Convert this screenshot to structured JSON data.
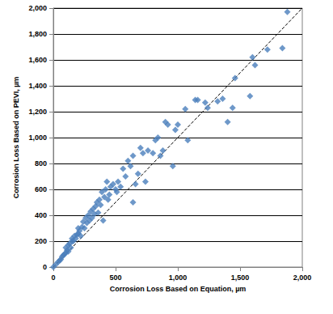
{
  "chart_data": {
    "type": "scatter",
    "x_label": "Corrosion Loss Based on Equation, µm",
    "y_label": "Corrosion Loss Based on PEVI, µm",
    "xlim": [
      0,
      2000
    ],
    "xticks": [
      0,
      500,
      1000,
      1500,
      2000
    ],
    "ylim": [
      0,
      2000
    ],
    "yticks": [
      0,
      200,
      400,
      600,
      800,
      1000,
      1200,
      1400,
      1600,
      1800,
      2000
    ],
    "grid": true,
    "series": [
      {
        "type": "scatter",
        "marker": "diamond",
        "color": "#4a7ebb",
        "x": [
          0,
          20,
          40,
          50,
          60,
          70,
          80,
          90,
          100,
          100,
          110,
          120,
          120,
          130,
          140,
          150,
          150,
          160,
          170,
          180,
          190,
          200,
          200,
          210,
          220,
          230,
          240,
          250,
          260,
          270,
          280,
          290,
          300,
          310,
          320,
          330,
          340,
          350,
          360,
          370,
          380,
          390,
          400,
          410,
          420,
          430,
          440,
          450,
          460,
          480,
          500,
          510,
          520,
          540,
          560,
          580,
          600,
          620,
          640,
          640,
          660,
          680,
          700,
          720,
          740,
          760,
          800,
          820,
          840,
          860,
          880,
          900,
          920,
          960,
          980,
          1000,
          1060,
          1080,
          1140,
          1160,
          1220,
          1240,
          1320,
          1360,
          1400,
          1440,
          1460,
          1580,
          1600,
          1620,
          1720,
          1840,
          1880
        ],
        "values": [
          0,
          20,
          40,
          50,
          60,
          80,
          90,
          100,
          110,
          150,
          130,
          120,
          170,
          180,
          150,
          200,
          220,
          200,
          240,
          220,
          250,
          260,
          300,
          280,
          240,
          310,
          350,
          300,
          380,
          340,
          400,
          360,
          430,
          380,
          450,
          410,
          470,
          500,
          420,
          520,
          480,
          580,
          360,
          540,
          600,
          660,
          520,
          560,
          620,
          640,
          600,
          580,
          660,
          620,
          760,
          700,
          820,
          780,
          500,
          860,
          640,
          720,
          920,
          880,
          660,
          900,
          880,
          980,
          1000,
          860,
          900,
          1120,
          1100,
          780,
          1060,
          1100,
          1220,
          980,
          1290,
          1290,
          1270,
          1230,
          1280,
          1300,
          1120,
          1230,
          1460,
          1320,
          1620,
          1560,
          1680,
          1690,
          1970
        ]
      },
      {
        "type": "line",
        "line_style": "dashed",
        "color": "#000000",
        "x": [
          0,
          2000
        ],
        "values": [
          0,
          2000
        ]
      }
    ]
  }
}
